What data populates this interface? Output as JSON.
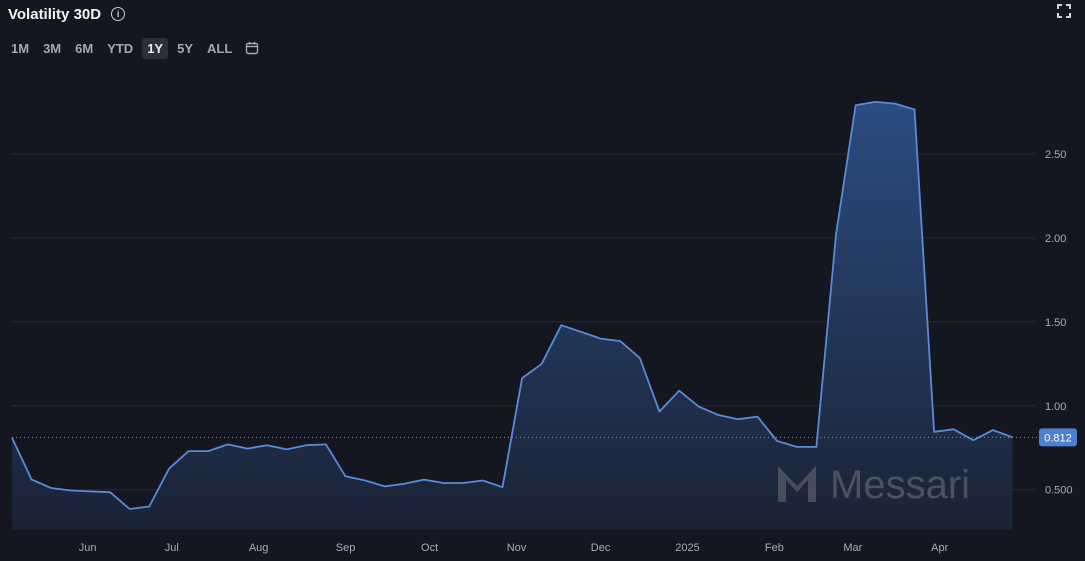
{
  "header": {
    "title": "Volatility 30D",
    "info_icon": "info-icon",
    "expand_icon": "expand-icon"
  },
  "ranges": {
    "items": [
      "1M",
      "3M",
      "6M",
      "YTD",
      "1Y",
      "5Y",
      "ALL"
    ],
    "active": "1Y",
    "calendar_icon": "calendar-icon"
  },
  "watermark": {
    "text": "Messari"
  },
  "colors": {
    "background": "#141720",
    "line": "#5b8ad6",
    "badge": "#4f7fd1"
  },
  "chart_data": {
    "type": "area",
    "title": "Volatility 30D",
    "xlabel": "",
    "ylabel": "",
    "x_range": [
      "2024-05-05",
      "2025-05-05"
    ],
    "ylim": [
      0.26,
      3.0
    ],
    "y_ticks": [
      0.5,
      1.0,
      1.5,
      2.0,
      2.5
    ],
    "y_tick_labels": [
      "0.500",
      "1.00",
      "1.50",
      "2.00",
      "2.50"
    ],
    "x_ticks": [
      {
        "label": "Jun",
        "date": "2024-06-01"
      },
      {
        "label": "Jul",
        "date": "2024-07-01"
      },
      {
        "label": "Aug",
        "date": "2024-08-01"
      },
      {
        "label": "Sep",
        "date": "2024-09-01"
      },
      {
        "label": "Oct",
        "date": "2024-10-01"
      },
      {
        "label": "Nov",
        "date": "2024-11-01"
      },
      {
        "label": "Dec",
        "date": "2024-12-01"
      },
      {
        "label": "2025",
        "date": "2025-01-01"
      },
      {
        "label": "Feb",
        "date": "2025-02-01"
      },
      {
        "label": "Mar",
        "date": "2025-03-01"
      },
      {
        "label": "Apr",
        "date": "2025-04-01"
      }
    ],
    "grid": true,
    "current_value": 0.812,
    "current_label": "0.812",
    "series": [
      {
        "points": [
          [
            "2024-05-05",
            0.81
          ],
          [
            "2024-05-12",
            0.56
          ],
          [
            "2024-05-19",
            0.51
          ],
          [
            "2024-05-26",
            0.495
          ],
          [
            "2024-06-02",
            0.49
          ],
          [
            "2024-06-09",
            0.485
          ],
          [
            "2024-06-16",
            0.385
          ],
          [
            "2024-06-23",
            0.4
          ],
          [
            "2024-06-30",
            0.625
          ],
          [
            "2024-07-07",
            0.73
          ],
          [
            "2024-07-14",
            0.73
          ],
          [
            "2024-07-21",
            0.77
          ],
          [
            "2024-07-28",
            0.745
          ],
          [
            "2024-08-04",
            0.765
          ],
          [
            "2024-08-11",
            0.74
          ],
          [
            "2024-08-18",
            0.765
          ],
          [
            "2024-08-25",
            0.77
          ],
          [
            "2024-09-01",
            0.58
          ],
          [
            "2024-09-08",
            0.555
          ],
          [
            "2024-09-15",
            0.52
          ],
          [
            "2024-09-22",
            0.535
          ],
          [
            "2024-09-29",
            0.56
          ],
          [
            "2024-10-06",
            0.54
          ],
          [
            "2024-10-13",
            0.54
          ],
          [
            "2024-10-20",
            0.555
          ],
          [
            "2024-10-27",
            0.515
          ],
          [
            "2024-11-03",
            1.165
          ],
          [
            "2024-11-10",
            1.25
          ],
          [
            "2024-11-17",
            1.48
          ],
          [
            "2024-11-24",
            1.44
          ],
          [
            "2024-12-01",
            1.4
          ],
          [
            "2024-12-08",
            1.385
          ],
          [
            "2024-12-15",
            1.285
          ],
          [
            "2024-12-22",
            0.965
          ],
          [
            "2024-12-29",
            1.09
          ],
          [
            "2025-01-05",
            0.995
          ],
          [
            "2025-01-12",
            0.945
          ],
          [
            "2025-01-19",
            0.92
          ],
          [
            "2025-01-26",
            0.935
          ],
          [
            "2025-02-02",
            0.79
          ],
          [
            "2025-02-09",
            0.755
          ],
          [
            "2025-02-16",
            0.755
          ],
          [
            "2025-02-23",
            2.02
          ],
          [
            "2025-03-02",
            2.79
          ],
          [
            "2025-03-09",
            2.81
          ],
          [
            "2025-03-16",
            2.8
          ],
          [
            "2025-03-23",
            2.765
          ],
          [
            "2025-03-30",
            0.845
          ],
          [
            "2025-04-06",
            0.86
          ],
          [
            "2025-04-13",
            0.795
          ],
          [
            "2025-04-20",
            0.855
          ],
          [
            "2025-04-27",
            0.812
          ]
        ]
      }
    ]
  }
}
